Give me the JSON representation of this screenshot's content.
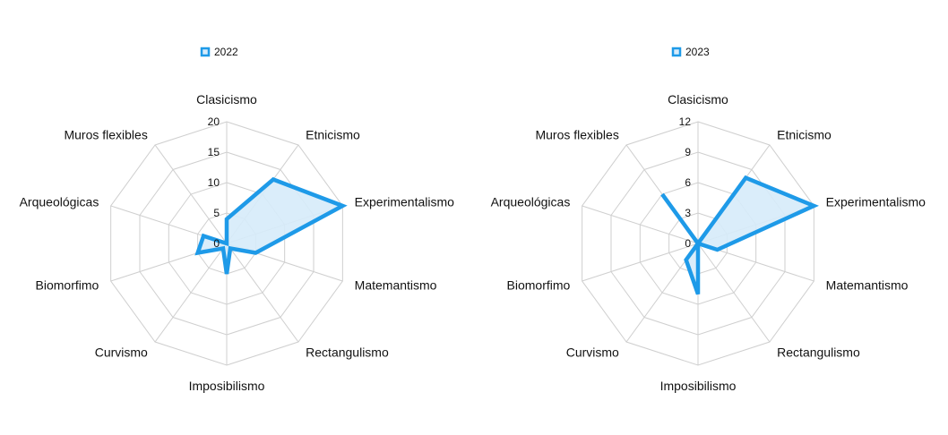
{
  "chart_data": [
    {
      "type": "radar",
      "legend": "2022",
      "legend_position": "top",
      "categories": [
        "Clasicismo",
        "Etnicismo",
        "Experimentalismo",
        "Matemantismo",
        "Rectangulismo",
        "Imposibilismo",
        "Curvismo",
        "Biomorfimo",
        "Arqueológicas",
        "Muros flexibles"
      ],
      "ticks": [
        "0",
        "5",
        "10",
        "15",
        "20"
      ],
      "rlim": [
        0,
        20
      ],
      "grid": true,
      "series": [
        {
          "name": "2022",
          "values": [
            4,
            13,
            20,
            5,
            1,
            5,
            1,
            5,
            4,
            0
          ]
        }
      ]
    },
    {
      "type": "radar",
      "legend": "2023",
      "legend_position": "top",
      "categories": [
        "Clasicismo",
        "Etnicismo",
        "Experimentalismo",
        "Matemantismo",
        "Rectangulismo",
        "Imposibilismo",
        "Curvismo",
        "Biomorfimo",
        "Arqueológicas",
        "Muros flexibles"
      ],
      "ticks": [
        "0",
        "3",
        "6",
        "9",
        "12"
      ],
      "rlim": [
        0,
        12
      ],
      "grid": true,
      "series": [
        {
          "name": "2023",
          "values": [
            0,
            8,
            12,
            2,
            0,
            5,
            2,
            0,
            0,
            6
          ]
        }
      ]
    }
  ],
  "colors": {
    "series": "#1e9ae8",
    "fill": "#d6ebfa",
    "grid": "#cfcfcf"
  }
}
